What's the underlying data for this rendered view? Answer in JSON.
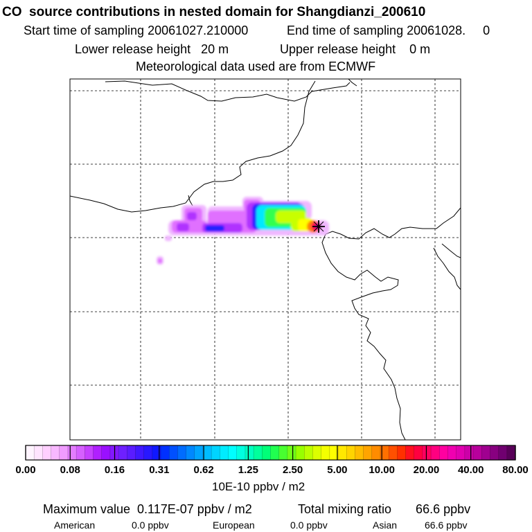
{
  "header": {
    "title": "CO  source contributions in nested domain for Shangdianzi_200610",
    "start_sampling": "Start time of sampling 20061027.210000",
    "end_sampling": "End time of sampling 20061028.     0",
    "lower_release": "Lower release height   20 m",
    "upper_release": "Upper release height    0 m",
    "met_data": "Meteorological data used are from ECMWF"
  },
  "colorbar": {
    "tick_labels": [
      "0.00",
      "0.08",
      "0.16",
      "0.31",
      "0.62",
      "1.25",
      "2.50",
      "5.00",
      "10.00",
      "20.00",
      "40.00",
      "80.00"
    ],
    "unit": "10E-10 ppbv / m2",
    "colors": [
      "#fff4ff",
      "#ffe4ff",
      "#ffd0ff",
      "#f8b8ff",
      "#f09cff",
      "#e37dff",
      "#d660ff",
      "#c641ff",
      "#b020ff",
      "#9a10ff",
      "#8318ff",
      "#6e20ff",
      "#5a1cff",
      "#4018ff",
      "#2818ff",
      "#1018ff",
      "#0030ff",
      "#0050ff",
      "#006cff",
      "#0088ff",
      "#00a4ff",
      "#00bcff",
      "#00d4ff",
      "#00ecff",
      "#00ffff",
      "#00ffe0",
      "#00ffc0",
      "#00ff9c",
      "#00ff78",
      "#20ff50",
      "#48ff30",
      "#70ff18",
      "#98ff00",
      "#bcff00",
      "#dcff00",
      "#f4ff00",
      "#ffff00",
      "#ffe800",
      "#ffd400",
      "#ffbc00",
      "#ffa400",
      "#ff8c00",
      "#ff7000",
      "#ff5000",
      "#ff3000",
      "#ff1020",
      "#ff0040",
      "#ff0060",
      "#ff0080",
      "#ff00a0",
      "#f000b0",
      "#e000b0",
      "#cc00a8",
      "#b8009c",
      "#a00090",
      "#880080",
      "#700070",
      "#580058"
    ]
  },
  "summary": {
    "max_value": "Maximum value  0.117E-07 ppbv / m2",
    "total_mixing": "Total mixing ratio       66.6 ppbv",
    "regions": [
      {
        "name": "American",
        "value": "0.0 ppbv"
      },
      {
        "name": "European",
        "value": "0.0 ppbv"
      },
      {
        "name": "Asian",
        "value": "66.6 ppbv"
      }
    ]
  },
  "map": {
    "receptor": "Shangdianzi",
    "receptor_marker": "cross",
    "plume_colors": {
      "faint": "#f0b8ff",
      "light": "#e070ff",
      "violet": "#b030ff",
      "blue": "#2020ff",
      "cyan": "#00e8ff",
      "green": "#30ff40",
      "yellow": "#ffff00",
      "red": "#ff1040",
      "magenta": "#c000a0"
    }
  }
}
